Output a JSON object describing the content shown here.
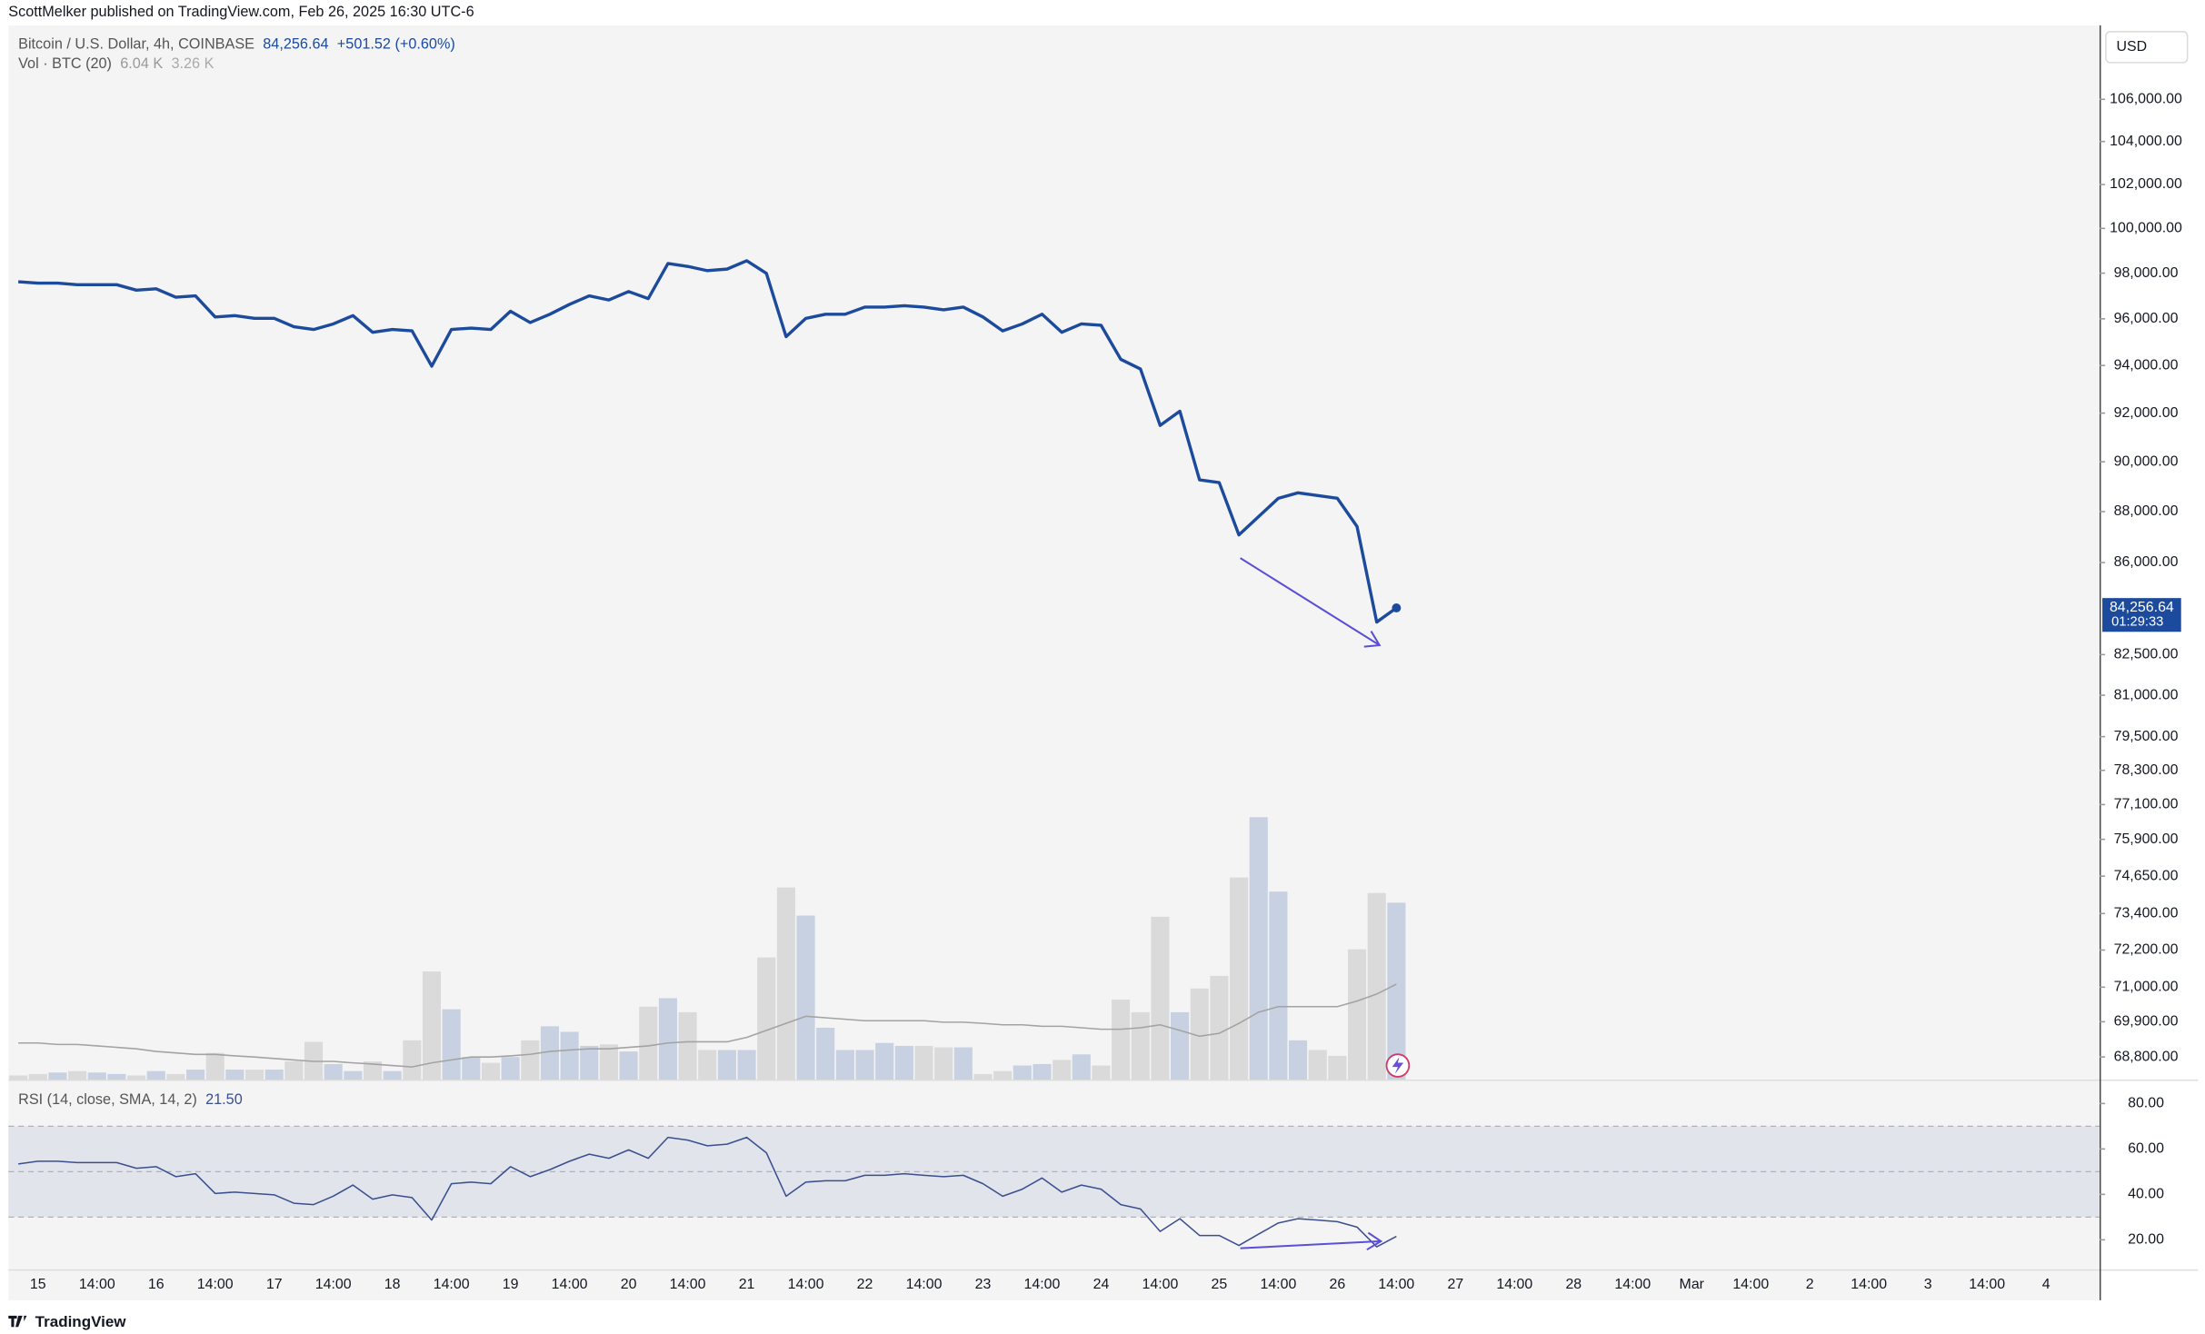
{
  "header": {
    "published": "ScottMelker published on TradingView.com, Feb 26, 2025 16:30 UTC-6"
  },
  "footer": {
    "brand": "TradingView"
  },
  "chart_data": [
    {
      "type": "line",
      "title": "Bitcoin / U.S. Dollar, 4h, COINBASE",
      "last_value_label": "84,256.64",
      "change_label": "+501.52 (+0.60%)",
      "axis_unit": "USD",
      "price_badge": "84,256.64",
      "countdown": "01:29:33",
      "log_scale": true,
      "color": "#1c4a9c",
      "categories": [
        null,
        "15",
        null,
        null,
        "14:00",
        null,
        null,
        "16",
        null,
        null,
        "14:00",
        null,
        null,
        "17",
        null,
        null,
        "14:00",
        null,
        null,
        "18",
        null,
        null,
        "14:00",
        null,
        null,
        "19",
        null,
        null,
        "14:00",
        null,
        null,
        "20",
        null,
        null,
        "14:00",
        null,
        null,
        "21",
        null,
        null,
        "14:00",
        null,
        null,
        "22",
        null,
        null,
        "14:00",
        null,
        null,
        "23",
        null,
        null,
        "14:00",
        null,
        null,
        "24",
        null,
        null,
        "14:00",
        null,
        null,
        "25",
        null,
        null,
        "14:00",
        null,
        null,
        "26",
        null,
        null,
        "14:00",
        null,
        null,
        "27",
        null,
        null,
        "14:00",
        null,
        null,
        "28",
        null,
        null,
        "14:00",
        null,
        null,
        "Mar",
        null,
        null,
        "14:00",
        null,
        null,
        "2",
        null,
        null,
        "14:00",
        null,
        null,
        "3",
        null,
        null,
        "14:00",
        null,
        null,
        "4",
        null,
        null
      ],
      "values": [
        97620,
        97560,
        97560,
        97490,
        97490,
        97490,
        97250,
        97310,
        96940,
        97000,
        96080,
        96140,
        96020,
        96020,
        95660,
        95540,
        95780,
        96140,
        95420,
        95540,
        95480,
        93970,
        95540,
        95600,
        95540,
        96330,
        95840,
        96200,
        96630,
        97000,
        96820,
        97190,
        96880,
        98430,
        98300,
        98110,
        98180,
        98550,
        97990,
        95230,
        96020,
        96200,
        96200,
        96510,
        96510,
        96570,
        96510,
        96390,
        96510,
        96080,
        95480,
        95780,
        96200,
        95420,
        95780,
        95720,
        94260,
        93850,
        91490,
        92080,
        89270,
        89160,
        87080,
        87800,
        88530,
        88750,
        88640,
        88530,
        87410,
        83720,
        84256.64,
        null,
        null,
        null,
        null,
        null,
        null,
        null,
        null,
        null,
        null,
        null,
        null,
        null,
        null,
        null,
        null,
        null,
        null,
        null,
        null,
        null,
        null,
        null,
        null,
        null,
        null,
        null,
        null,
        null,
        null,
        null,
        null,
        null,
        null,
        null
      ],
      "ylim": [
        68100,
        109600
      ],
      "yticks": [
        {
          "value": 106000,
          "label": "106,000.00"
        },
        {
          "value": 104000,
          "label": "104,000.00"
        },
        {
          "value": 102000,
          "label": "102,000.00"
        },
        {
          "value": 100000,
          "label": "100,000.00"
        },
        {
          "value": 98000,
          "label": "98,000.00"
        },
        {
          "value": 96000,
          "label": "96,000.00"
        },
        {
          "value": 94000,
          "label": "94,000.00"
        },
        {
          "value": 92000,
          "label": "92,000.00"
        },
        {
          "value": 90000,
          "label": "90,000.00"
        },
        {
          "value": 88000,
          "label": "88,000.00"
        },
        {
          "value": 86000,
          "label": "86,000.00"
        },
        {
          "value": 82500,
          "label": "82,500.00"
        },
        {
          "value": 81000,
          "label": "81,000.00"
        },
        {
          "value": 79500,
          "label": "79,500.00"
        },
        {
          "value": 78300,
          "label": "78,300.00"
        },
        {
          "value": 77100,
          "label": "77,100.00"
        },
        {
          "value": 75900,
          "label": "75,900.00"
        },
        {
          "value": 74650,
          "label": "74,650.00"
        },
        {
          "value": 73400,
          "label": "73,400.00"
        },
        {
          "value": 72200,
          "label": "72,200.00"
        },
        {
          "value": 71000,
          "label": "71,000.00"
        },
        {
          "value": 69900,
          "label": "69,900.00"
        },
        {
          "value": 68800,
          "label": "68,800.00"
        }
      ]
    },
    {
      "type": "bar",
      "title": "Vol · BTC (20)",
      "last_value_label": "6.04 K",
      "up_color": "#c7d1e1",
      "down_color": "#dadada",
      "values": [
        0.14,
        0.19,
        0.24,
        0.29,
        0.24,
        0.19,
        0.14,
        0.29,
        0.19,
        0.34,
        0.91,
        0.34,
        0.34,
        0.34,
        0.62,
        1.29,
        0.53,
        0.29,
        0.62,
        0.29,
        1.34,
        3.69,
        2.4,
        0.77,
        0.57,
        0.77,
        1.34,
        1.82,
        1.63,
        1.15,
        1.2,
        0.96,
        2.49,
        2.78,
        2.3,
        1.01,
        1.01,
        1.01,
        4.17,
        6.56,
        5.6,
        1.77,
        1.01,
        1.01,
        1.25,
        1.15,
        1.15,
        1.1,
        1.1,
        0.19,
        0.29,
        0.48,
        0.53,
        0.67,
        0.86,
        0.48,
        2.73,
        2.3,
        5.56,
        2.3,
        3.11,
        3.54,
        6.9,
        8.96,
        6.42,
        1.34,
        1.01,
        0.81,
        4.45,
        6.37,
        6.04,
        null,
        null,
        null,
        null,
        null,
        null,
        null,
        null,
        null,
        null,
        null,
        null,
        null,
        null,
        null,
        null,
        null,
        null,
        null,
        null,
        null,
        null,
        null,
        null,
        null,
        null,
        null,
        null,
        null,
        null,
        null,
        null,
        null,
        null,
        null
      ],
      "ma": {
        "color": "#a3a3a3",
        "last_value_label": "3.26 K",
        "values": [
          1.25,
          1.25,
          1.2,
          1.2,
          1.15,
          1.1,
          1.05,
          0.96,
          0.91,
          0.86,
          0.86,
          0.81,
          0.77,
          0.72,
          0.67,
          0.62,
          0.62,
          0.57,
          0.53,
          0.48,
          0.43,
          0.57,
          0.67,
          0.77,
          0.77,
          0.81,
          0.86,
          0.96,
          1.01,
          1.05,
          1.05,
          1.1,
          1.15,
          1.25,
          1.29,
          1.29,
          1.29,
          1.44,
          1.68,
          1.92,
          2.16,
          2.11,
          2.06,
          2.01,
          2.01,
          2.01,
          2.01,
          1.96,
          1.96,
          1.92,
          1.87,
          1.87,
          1.82,
          1.82,
          1.77,
          1.72,
          1.72,
          1.77,
          1.87,
          1.68,
          1.48,
          1.58,
          1.92,
          2.3,
          2.49,
          2.49,
          2.49,
          2.49,
          2.68,
          2.92,
          3.26,
          null,
          null,
          null,
          null,
          null,
          null,
          null,
          null,
          null,
          null,
          null,
          null,
          null,
          null,
          null,
          null,
          null,
          null,
          null,
          null,
          null,
          null,
          null,
          null,
          null,
          null,
          null,
          null,
          null,
          null,
          null,
          null,
          null,
          null,
          null
        ]
      },
      "ylim": [
        0,
        9.6
      ]
    },
    {
      "type": "line",
      "title": "RSI (14, close, SMA, 14, 2)",
      "last_value_label": "21.50",
      "color": "#3b4f8f",
      "band": [
        30,
        70
      ],
      "midline": 50,
      "band_color": "#e1e5eb",
      "values": [
        53.4,
        54.6,
        54.6,
        54.0,
        54.0,
        54.0,
        51.5,
        52.2,
        47.8,
        49.1,
        40.4,
        41.0,
        40.4,
        39.8,
        36.1,
        35.5,
        39.2,
        44.1,
        37.9,
        39.8,
        38.6,
        28.7,
        44.7,
        45.4,
        44.7,
        52.2,
        47.8,
        50.9,
        54.6,
        57.7,
        55.9,
        59.6,
        55.9,
        65.1,
        63.9,
        61.4,
        62.1,
        65.1,
        58.3,
        39.2,
        45.4,
        46.0,
        46.0,
        48.4,
        48.4,
        49.1,
        48.4,
        47.8,
        48.4,
        44.7,
        39.2,
        42.3,
        47.2,
        41.0,
        44.1,
        42.3,
        35.5,
        33.6,
        23.7,
        29.3,
        21.9,
        21.9,
        17.5,
        22.5,
        27.4,
        29.3,
        28.7,
        28.0,
        25.6,
        16.9,
        21.5,
        null,
        null,
        null,
        null,
        null,
        null,
        null,
        null,
        null,
        null,
        null,
        null,
        null,
        null,
        null,
        null,
        null,
        null,
        null,
        null,
        null,
        null,
        null,
        null,
        null,
        null,
        null,
        null,
        null,
        null,
        null,
        null,
        null,
        null,
        null
      ],
      "ylim": [
        7,
        89.3
      ],
      "yticks": [
        {
          "value": 80,
          "label": "80.00"
        },
        {
          "value": 60,
          "label": "60.00"
        },
        {
          "value": 40,
          "label": "40.00"
        },
        {
          "value": 20,
          "label": "20.00"
        }
      ]
    }
  ]
}
